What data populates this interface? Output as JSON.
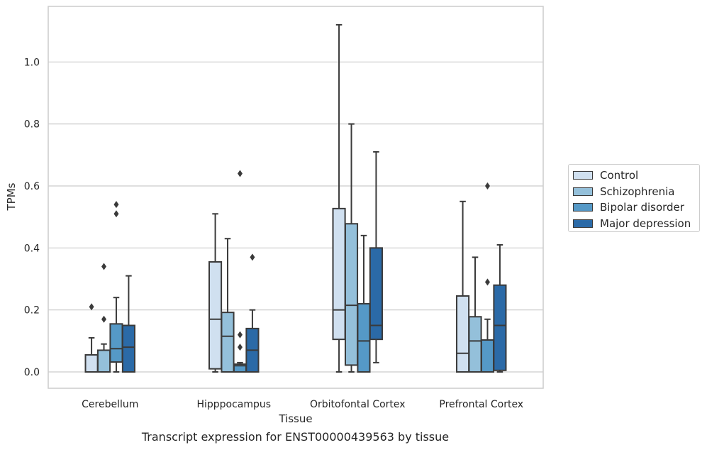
{
  "chart_data": {
    "type": "box",
    "title": "",
    "caption": "Transcript expression for ENST00000439563 by tissue",
    "xlabel": "Tissue",
    "ylabel": "TPMs",
    "ylim": [
      -0.055,
      1.18
    ],
    "yticks": [
      "0.0",
      "0.2",
      "0.4",
      "0.6",
      "0.8",
      "1.0"
    ],
    "grid": "horizontal",
    "legend_position": "right",
    "categories": [
      "Cerebellum",
      "Hipppocampus",
      "Orbitofontal Cortex",
      "Prefrontal Cortex"
    ],
    "series": [
      {
        "name": "Control",
        "color": "#d0e0f0",
        "boxes": [
          {
            "whisker_low": 0,
            "q1": 0,
            "median": 0,
            "q3": 0.055,
            "whisker_high": 0.11,
            "outliers": [
              0.21
            ]
          },
          {
            "whisker_low": 0,
            "q1": 0.01,
            "median": 0.17,
            "q3": 0.355,
            "whisker_high": 0.51,
            "outliers": []
          },
          {
            "whisker_low": 0,
            "q1": 0.105,
            "median": 0.2,
            "q3": 0.527,
            "whisker_high": 1.12,
            "outliers": []
          },
          {
            "whisker_low": 0,
            "q1": 0,
            "median": 0.06,
            "q3": 0.245,
            "whisker_high": 0.55,
            "outliers": []
          }
        ]
      },
      {
        "name": "Schizophrenia",
        "color": "#94c0da",
        "boxes": [
          {
            "whisker_low": 0,
            "q1": 0,
            "median": 0,
            "q3": 0.07,
            "whisker_high": 0.09,
            "outliers": [
              0.17,
              0.34
            ]
          },
          {
            "whisker_low": 0,
            "q1": 0,
            "median": 0.115,
            "q3": 0.192,
            "whisker_high": 0.43,
            "outliers": []
          },
          {
            "whisker_low": 0,
            "q1": 0.022,
            "median": 0.215,
            "q3": 0.478,
            "whisker_high": 0.8,
            "outliers": []
          },
          {
            "whisker_low": 0,
            "q1": 0,
            "median": 0.1,
            "q3": 0.178,
            "whisker_high": 0.37,
            "outliers": []
          }
        ]
      },
      {
        "name": "Bipolar disorder",
        "color": "#5599c7",
        "boxes": [
          {
            "whisker_low": 0,
            "q1": 0.032,
            "median": 0.075,
            "q3": 0.155,
            "whisker_high": 0.24,
            "outliers": [
              0.51,
              0.54
            ]
          },
          {
            "whisker_low": 0,
            "q1": 0,
            "median": 0.02,
            "q3": 0.025,
            "whisker_high": 0.03,
            "outliers": [
              0.08,
              0.12,
              0.64
            ]
          },
          {
            "whisker_low": 0,
            "q1": 0,
            "median": 0.1,
            "q3": 0.22,
            "whisker_high": 0.44,
            "outliers": []
          },
          {
            "whisker_low": 0,
            "q1": 0,
            "median": 0,
            "q3": 0.103,
            "whisker_high": 0.17,
            "outliers": [
              0.29,
              0.6
            ]
          }
        ]
      },
      {
        "name": "Major depression",
        "color": "#2b6aa7",
        "boxes": [
          {
            "whisker_low": 0,
            "q1": 0,
            "median": 0.08,
            "q3": 0.15,
            "whisker_high": 0.31,
            "outliers": []
          },
          {
            "whisker_low": 0,
            "q1": 0,
            "median": 0.07,
            "q3": 0.14,
            "whisker_high": 0.2,
            "outliers": [
              0.37
            ]
          },
          {
            "whisker_low": 0.03,
            "q1": 0.105,
            "median": 0.15,
            "q3": 0.4,
            "whisker_high": 0.71,
            "outliers": []
          },
          {
            "whisker_low": 0,
            "q1": 0.005,
            "median": 0.15,
            "q3": 0.28,
            "whisker_high": 0.41,
            "outliers": []
          }
        ]
      }
    ]
  }
}
